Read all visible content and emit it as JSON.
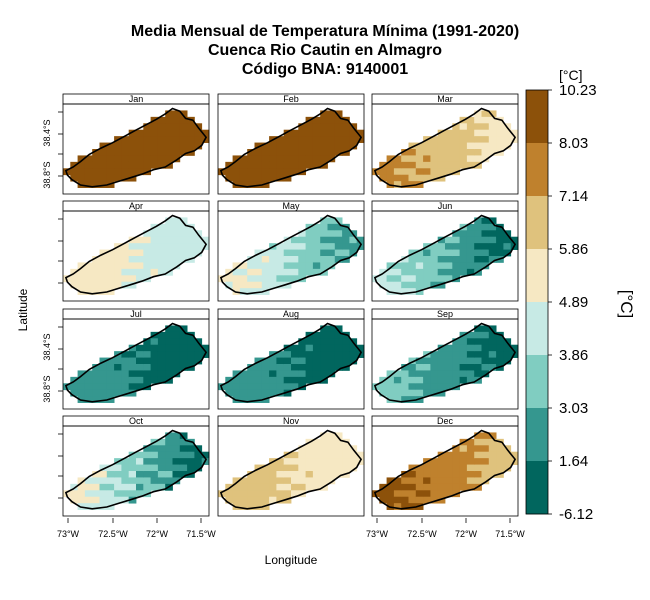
{
  "title": {
    "line1": "Media Mensual de Temperatura Mínima (1991-2020)",
    "line2": "Cuenca Rio Cautin en Almagro",
    "line3": "Código BNA: 9140001"
  },
  "xlabel": "Longitude",
  "ylabel": "Latitude",
  "x_ticks": [
    "73°W",
    "72.5°W",
    "72°W",
    "71.5°W"
  ],
  "y_ticks": [
    "38.4°S",
    "38.8°S"
  ],
  "colorbar": {
    "unit_top": "[°C]",
    "unit_side": "[°C]",
    "labels": [
      "10.23",
      "8.03",
      "7.14",
      "5.86",
      "4.89",
      "3.86",
      "3.03",
      "1.64",
      "-6.12"
    ],
    "colors": [
      "#8c510a",
      "#bf812d",
      "#dfc27d",
      "#f6e8c3",
      "#c7eae5",
      "#80cdc1",
      "#35978f",
      "#01665e"
    ]
  },
  "chart_data": {
    "type": "heatmap",
    "title": "Media Mensual de Temperatura Mínima (1991-2020)",
    "xlabel": "Longitude",
    "ylabel": "Latitude",
    "legend": "right",
    "panels": [
      {
        "month": "Jan",
        "range_c": [
          8.03,
          10.23
        ],
        "west_bin": 0,
        "east_bin": 0
      },
      {
        "month": "Feb",
        "range_c": [
          8.03,
          10.23
        ],
        "west_bin": 0,
        "east_bin": 0
      },
      {
        "month": "Mar",
        "range_c": [
          5.86,
          8.03
        ],
        "west_bin": 1,
        "east_bin": 3
      },
      {
        "month": "Apr",
        "range_c": [
          3.86,
          5.86
        ],
        "west_bin": 3,
        "east_bin": 4
      },
      {
        "month": "May",
        "range_c": [
          1.64,
          5.86
        ],
        "west_bin": 3,
        "east_bin": 6
      },
      {
        "month": "Jun",
        "range_c": [
          -6.12,
          4.89
        ],
        "west_bin": 4,
        "east_bin": 7
      },
      {
        "month": "Jul",
        "range_c": [
          -6.12,
          3.03
        ],
        "west_bin": 6,
        "east_bin": 7
      },
      {
        "month": "Aug",
        "range_c": [
          -6.12,
          3.03
        ],
        "west_bin": 6,
        "east_bin": 7
      },
      {
        "month": "Sep",
        "range_c": [
          -6.12,
          3.86
        ],
        "west_bin": 5,
        "east_bin": 7
      },
      {
        "month": "Oct",
        "range_c": [
          1.64,
          5.86
        ],
        "west_bin": 3,
        "east_bin": 7
      },
      {
        "month": "Nov",
        "range_c": [
          3.86,
          7.14
        ],
        "west_bin": 2,
        "east_bin": 3
      },
      {
        "month": "Dec",
        "range_c": [
          5.86,
          10.23
        ],
        "west_bin": 0,
        "east_bin": 2
      }
    ]
  }
}
